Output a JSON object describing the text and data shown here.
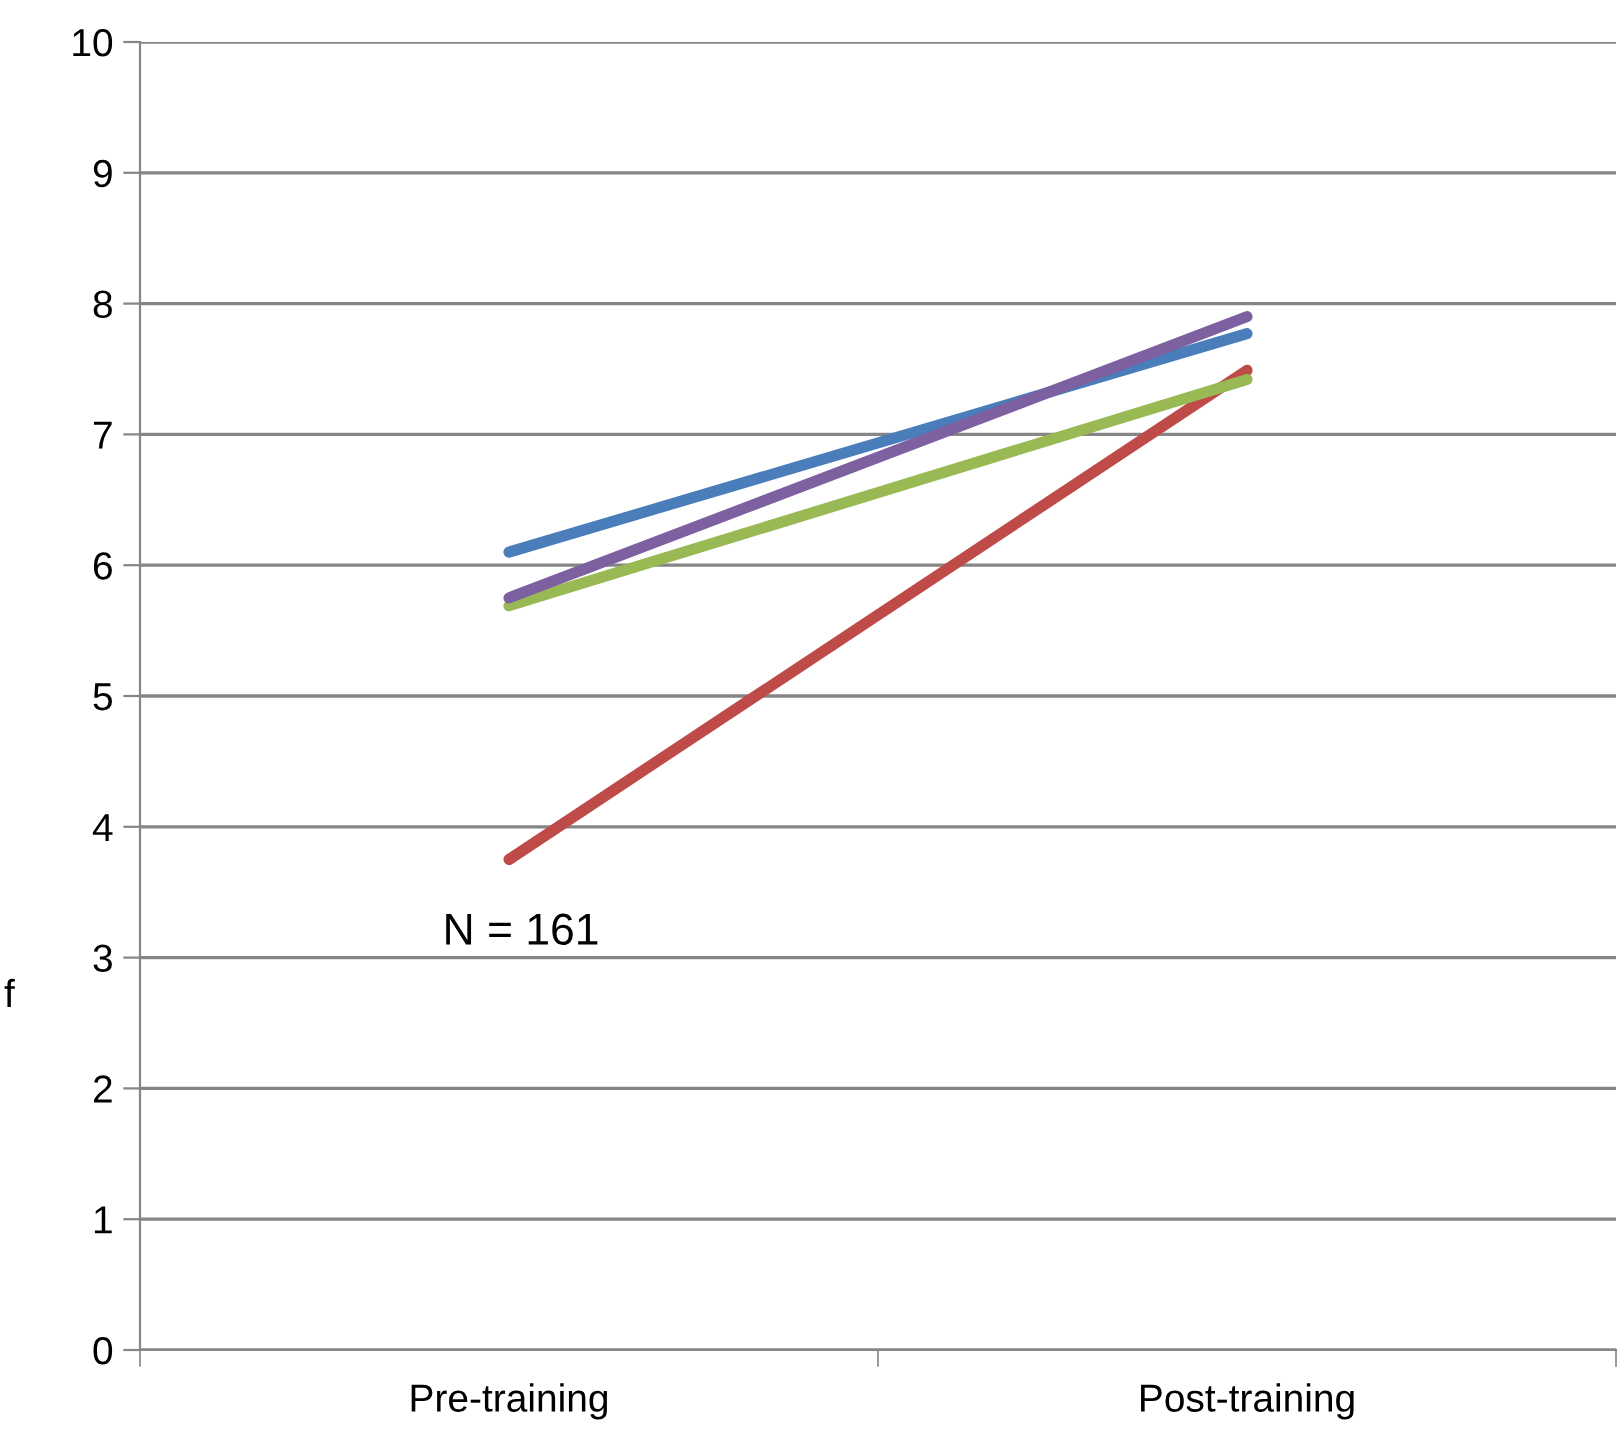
{
  "chart_data": {
    "type": "line",
    "ylabel": "f",
    "categories": [
      "Pre-training",
      "Post-training"
    ],
    "series": [
      {
        "color": "#4a7ebb",
        "values": [
          6.1,
          7.77
        ]
      },
      {
        "color": "#be4b48",
        "values": [
          3.75,
          7.49
        ]
      },
      {
        "color": "#98b954",
        "values": [
          5.69,
          7.42
        ]
      },
      {
        "color": "#7d60a0",
        "values": [
          5.75,
          7.9
        ]
      }
    ],
    "ylim": [
      0,
      10
    ],
    "yticks": [
      0,
      1,
      2,
      3,
      4,
      5,
      6,
      7,
      8,
      9,
      10
    ],
    "grid": "y",
    "legend": false,
    "marker": "none",
    "line_style": "solid",
    "annotations": [
      "N = 161"
    ]
  }
}
